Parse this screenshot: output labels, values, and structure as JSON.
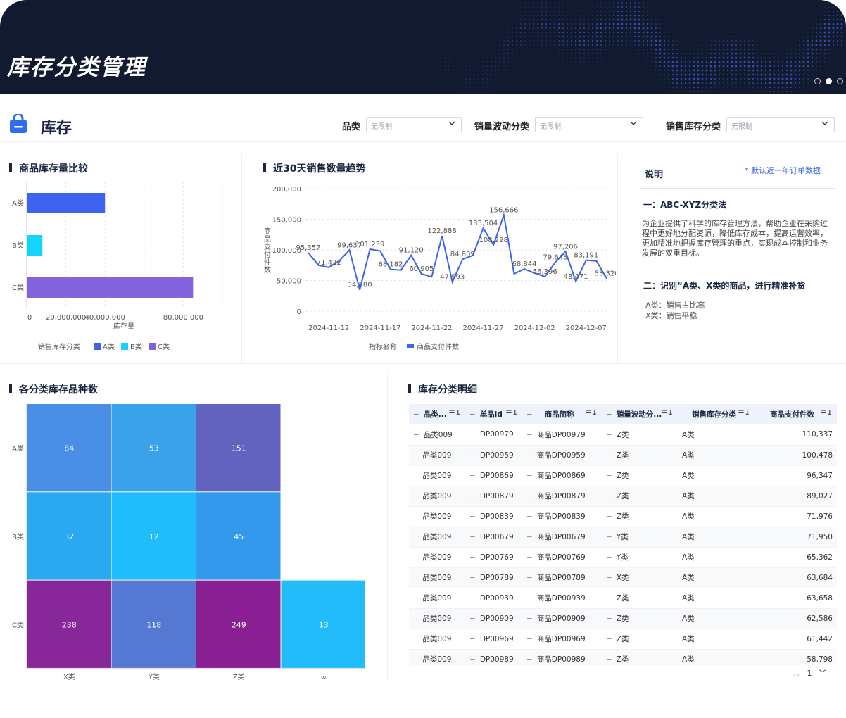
{
  "header": {
    "title": "库存分类管理"
  },
  "toolbar": {
    "title": "库存",
    "filters": [
      {
        "label": "品类",
        "value": "无限制"
      },
      {
        "label": "销量波动分类",
        "value": "无限制"
      },
      {
        "label": "销售库存分类",
        "value": "无限制"
      }
    ]
  },
  "panels": {
    "stock_compare": {
      "title": "商品库存量比较"
    },
    "trend": {
      "title": "近30天销售数量趋势"
    },
    "heatmap": {
      "title": "各分类库存品种数"
    },
    "detail": {
      "title": "库存分类明细"
    }
  },
  "chart_data": [
    {
      "type": "bar",
      "orientation": "horizontal",
      "categories": [
        "A类",
        "B类",
        "C类"
      ],
      "values": [
        40000000,
        8000000,
        85000000
      ],
      "colors": [
        "#3d63f0",
        "#15d4fb",
        "#8463dd"
      ],
      "xlabel": "库存量",
      "xticks": [
        "0",
        "20,000,000",
        "40,000,000",
        "80,000,000"
      ],
      "legend": {
        "title": "销售库存分类",
        "items": [
          "A类",
          "B类",
          "C类"
        ],
        "position": "bottom"
      }
    },
    {
      "type": "line",
      "x": [
        "2024-11-10",
        "2024-11-11",
        "2024-11-12",
        "2024-11-13",
        "2024-11-14",
        "2024-11-15",
        "2024-11-16",
        "2024-11-17",
        "2024-11-18",
        "2024-11-19",
        "2024-11-20",
        "2024-11-21",
        "2024-11-22",
        "2024-11-23",
        "2024-11-24",
        "2024-11-25",
        "2024-11-26",
        "2024-11-27",
        "2024-11-28",
        "2024-11-29",
        "2024-11-30",
        "2024-12-01",
        "2024-12-02",
        "2024-12-03",
        "2024-12-04",
        "2024-12-05",
        "2024-12-06",
        "2024-12-07",
        "2024-12-08",
        "2024-12-09"
      ],
      "xticks": [
        "2024-11-12",
        "2024-11-17",
        "2024-11-22",
        "2024-11-27",
        "2024-12-02",
        "2024-12-07"
      ],
      "series": [
        {
          "name": "商品支付件数",
          "values": [
            95357,
            75000,
            71422,
            82000,
            99637,
            34880,
            101239,
            98000,
            68182,
            67000,
            91120,
            60905,
            56000,
            122888,
            47593,
            84809,
            91000,
            135504,
            108298,
            156666,
            61000,
            68844,
            62000,
            56396,
            79643,
            97206,
            48471,
            83191,
            82000,
            53320
          ]
        }
      ],
      "ylim": [
        0,
        200000
      ],
      "yticks": [
        "0",
        "50,000",
        "100,000",
        "150,000",
        "200,000"
      ],
      "ylabel": "商品支付件数",
      "legend": {
        "title": "指标名称",
        "items": [
          "商品支付件数"
        ],
        "position": "bottom"
      },
      "data_labels": [
        {
          "i": 0,
          "text": "95,357"
        },
        {
          "i": 2,
          "text": "71,422"
        },
        {
          "i": 4,
          "text": "99,637"
        },
        {
          "i": 5,
          "text": "34,880"
        },
        {
          "i": 6,
          "text": "101,239"
        },
        {
          "i": 8,
          "text": "68,182"
        },
        {
          "i": 10,
          "text": "91,120"
        },
        {
          "i": 11,
          "text": "60,905"
        },
        {
          "i": 13,
          "text": "122,888"
        },
        {
          "i": 14,
          "text": "47,593"
        },
        {
          "i": 15,
          "text": "84,809"
        },
        {
          "i": 17,
          "text": "135,504"
        },
        {
          "i": 18,
          "text": "108,298"
        },
        {
          "i": 19,
          "text": "156,666"
        },
        {
          "i": 21,
          "text": "68,844"
        },
        {
          "i": 23,
          "text": "56,396"
        },
        {
          "i": 24,
          "text": "79,643"
        },
        {
          "i": 25,
          "text": "97,206"
        },
        {
          "i": 26,
          "text": "48,471"
        },
        {
          "i": 27,
          "text": "83,191"
        },
        {
          "i": 29,
          "text": "53,320"
        }
      ]
    },
    {
      "type": "heatmap",
      "xcats": [
        "X类",
        "Y类",
        "Z类",
        "∞"
      ],
      "ycats": [
        "A类",
        "B类",
        "C类"
      ],
      "cells": [
        {
          "x": "X类",
          "y": "A类",
          "v": 84,
          "color": "#4a8fe6"
        },
        {
          "x": "Y类",
          "y": "A类",
          "v": 53,
          "color": "#3aa2eb"
        },
        {
          "x": "Z类",
          "y": "A类",
          "v": 151,
          "color": "#6163be"
        },
        {
          "x": "X类",
          "y": "B类",
          "v": 32,
          "color": "#2aa9f0"
        },
        {
          "x": "Y类",
          "y": "B类",
          "v": 12,
          "color": "#21bdfb"
        },
        {
          "x": "Z类",
          "y": "B类",
          "v": 45,
          "color": "#3399ec"
        },
        {
          "x": "X类",
          "y": "C类",
          "v": 238,
          "color": "#88279a"
        },
        {
          "x": "Y类",
          "y": "C类",
          "v": 118,
          "color": "#5578d2"
        },
        {
          "x": "Z类",
          "y": "C类",
          "v": 249,
          "color": "#891f92"
        },
        {
          "x": "∞",
          "y": "C类",
          "v": 13,
          "color": "#22bcfb"
        }
      ]
    }
  ],
  "note": {
    "title": "说明",
    "right_note": "* 默认近一年订单数据",
    "h1": "一：ABC-XYZ分类法",
    "p1": "为企业提供了科学的库存管理方法，帮助企业在采购过程中更好地分配资源，降低库存成本，提高运营效率，更加精准地把握库存管理的重点，实现成本控制和业务发展的双重目标。",
    "h2": "二：识别“A类、X类的商品，进行精准补货",
    "li1": "A类：销售占比高",
    "li2": "X类：销售平稳"
  },
  "table": {
    "columns": [
      "品类...",
      "单品id",
      "商品简称",
      "销量波动分...",
      "销售库存分类",
      "商品支付件数"
    ],
    "rows": [
      [
        "品类009",
        "DP00979",
        "商品DP00979",
        "Z类",
        "A类",
        "110,337"
      ],
      [
        "品类009",
        "DP00959",
        "商品DP00959",
        "Z类",
        "A类",
        "100,478"
      ],
      [
        "品类009",
        "DP00869",
        "商品DP00869",
        "Z类",
        "A类",
        "96,347"
      ],
      [
        "品类009",
        "DP00879",
        "商品DP00879",
        "Z类",
        "A类",
        "89,027"
      ],
      [
        "品类009",
        "DP00839",
        "商品DP00839",
        "Z类",
        "A类",
        "71,976"
      ],
      [
        "品类009",
        "DP00679",
        "商品DP00679",
        "Y类",
        "A类",
        "71,950"
      ],
      [
        "品类009",
        "DP00769",
        "商品DP00769",
        "Y类",
        "A类",
        "65,362"
      ],
      [
        "品类009",
        "DP00789",
        "商品DP00789",
        "X类",
        "A类",
        "63,684"
      ],
      [
        "品类009",
        "DP00939",
        "商品DP00939",
        "Z类",
        "A类",
        "63,658"
      ],
      [
        "品类009",
        "DP00909",
        "商品DP00909",
        "Z类",
        "A类",
        "62,586"
      ],
      [
        "品类009",
        "DP00969",
        "商品DP00969",
        "Z类",
        "A类",
        "61,442"
      ],
      [
        "品类009",
        "DP00989",
        "商品DP00989",
        "Z类",
        "A类",
        "58,798"
      ]
    ],
    "page": "1"
  },
  "colors": {
    "banner": "#111a2e",
    "accent": "#3d63f0",
    "title": "#1a2540"
  },
  "icons": [
    "shopping-bag-icon",
    "chevron-down-icon",
    "minus-icon",
    "sort-icon"
  ]
}
